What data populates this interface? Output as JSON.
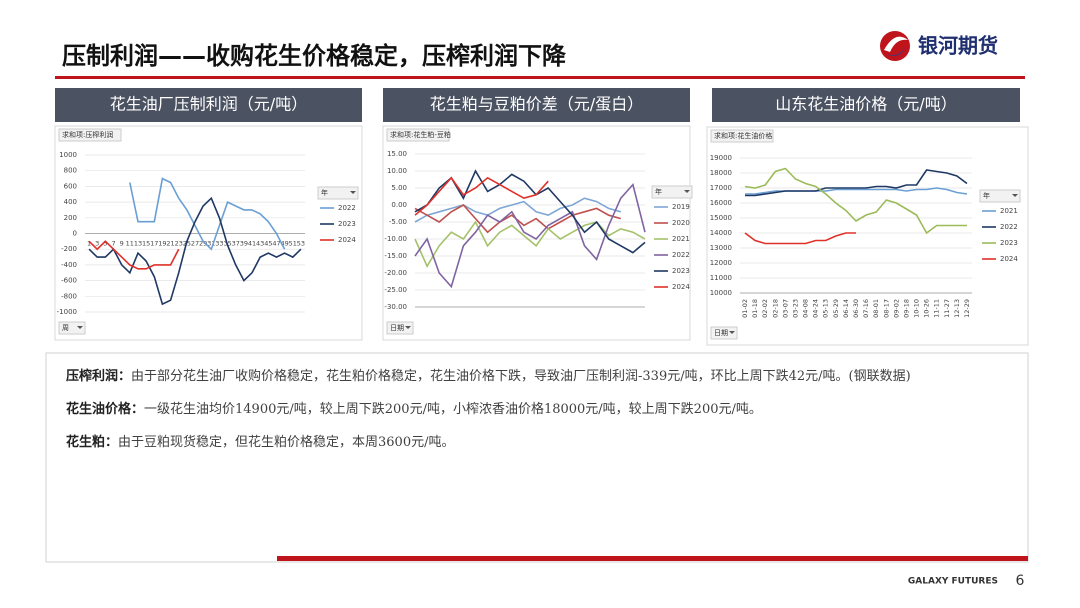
{
  "header": {
    "title": "压制利润——收购花生价格稳定，压榨利润下降",
    "logo": "银河期货"
  },
  "chart_data": [
    {
      "type": "line",
      "title": "花生油厂压制利润（元/吨）",
      "field_label": "求和项:压榨利润",
      "legend_title": "年",
      "x_filter": "周",
      "categories": [
        "1",
        "3",
        "5",
        "7",
        "9",
        "11",
        "13",
        "15",
        "17",
        "19",
        "21",
        "23",
        "25",
        "27",
        "29",
        "31",
        "33",
        "35",
        "37",
        "39",
        "41",
        "43",
        "45",
        "47",
        "49",
        "51",
        "53"
      ],
      "ylim": [
        -1000,
        1000
      ],
      "yticks": [
        1000,
        800,
        600,
        400,
        200,
        0,
        -200,
        -400,
        -600,
        -800,
        -1000
      ],
      "series": [
        {
          "name": "2022",
          "color": "#6a9fd4",
          "values": [
            null,
            null,
            null,
            null,
            null,
            650,
            150,
            150,
            150,
            700,
            650,
            450,
            300,
            100,
            -100,
            -200,
            100,
            400,
            350,
            300,
            300,
            250,
            150,
            0,
            -200,
            null,
            null
          ]
        },
        {
          "name": "2023",
          "color": "#1f3864",
          "values": [
            -200,
            -300,
            -300,
            -200,
            -400,
            -500,
            -250,
            -350,
            -550,
            -900,
            -850,
            -500,
            -100,
            150,
            350,
            450,
            200,
            -150,
            -400,
            -600,
            -500,
            -300,
            -250,
            -300,
            -250,
            -300,
            -200
          ]
        },
        {
          "name": "2024",
          "color": "#e0302a",
          "values": [
            -100,
            -200,
            -100,
            -200,
            -300,
            -400,
            -450,
            -450,
            -400,
            -400,
            -400,
            -200,
            null,
            null,
            null,
            null,
            null,
            null,
            null,
            null,
            null,
            null,
            null,
            null,
            null,
            null,
            null
          ]
        }
      ]
    },
    {
      "type": "line",
      "title": "花生粕与豆粕价差（元/蛋白）",
      "field_label": "求和项:花生粕-豆粕",
      "legend_title": "年",
      "x_filter": "日期",
      "categories": [
        null,
        null,
        null,
        null,
        null,
        null,
        null,
        null,
        null,
        null,
        null,
        null,
        null,
        null,
        null,
        null,
        null,
        null,
        null,
        null
      ],
      "ylim": [
        -30,
        15
      ],
      "yticks": [
        {
          "value": 15,
          "label": "15.00"
        },
        {
          "value": 10,
          "label": "10.00"
        },
        {
          "value": 5,
          "label": "5.00"
        },
        {
          "value": 0,
          "label": "0.00"
        },
        {
          "value": -5,
          "label": "-5.00"
        },
        {
          "value": -10,
          "label": "-10.00"
        },
        {
          "value": -15,
          "label": "-15.00"
        },
        {
          "value": -20,
          "label": "-20.00"
        },
        {
          "value": -25,
          "label": "-25.00"
        },
        {
          "value": -30,
          "label": "-30.00"
        }
      ],
      "series": [
        {
          "name": "2019",
          "color": "#7ea6d6",
          "values": [
            -5,
            -3,
            -2,
            -1,
            0,
            -2,
            -3,
            -1,
            0,
            1,
            -2,
            -3,
            -1,
            0,
            2,
            1,
            -1,
            -2,
            null,
            null
          ]
        },
        {
          "name": "2020",
          "color": "#c0504d",
          "values": [
            -1,
            -3,
            -5,
            -2,
            0,
            -4,
            -8,
            -5,
            -3,
            -6,
            -4,
            -7,
            -5,
            -3,
            -2,
            -1,
            -3,
            -4,
            null,
            null
          ]
        },
        {
          "name": "2021",
          "color": "#a5c26b",
          "values": [
            -10,
            -18,
            -12,
            -8,
            -10,
            -5,
            -12,
            -8,
            -6,
            -9,
            -12,
            -7,
            -10,
            -8,
            -6,
            -5,
            -9,
            -7,
            -8,
            -10
          ]
        },
        {
          "name": "2022",
          "color": "#8064a2",
          "values": [
            -15,
            -10,
            -20,
            -24,
            -12,
            -8,
            -3,
            -5,
            -2,
            -8,
            -10,
            -6,
            -4,
            -2,
            -12,
            -16,
            -6,
            2,
            6,
            -8
          ]
        },
        {
          "name": "2023",
          "color": "#1f3864",
          "values": [
            -2,
            0,
            5,
            8,
            2,
            10,
            4,
            6,
            9,
            7,
            3,
            5,
            1,
            -3,
            -8,
            -5,
            -10,
            -12,
            -14,
            -11
          ]
        },
        {
          "name": "2024",
          "color": "#e0302a",
          "values": [
            -3,
            0,
            4,
            8,
            3,
            5,
            8,
            6,
            4,
            2,
            3,
            7,
            null,
            null,
            null,
            null,
            null,
            null,
            null,
            null
          ]
        }
      ]
    },
    {
      "type": "line",
      "title": "山东花生油价格（元/吨）",
      "field_label": "求和项:花生油价格",
      "legend_title": "年",
      "x_filter": "日期",
      "categories": [
        "01-02",
        "01-18",
        "02-02",
        "02-18",
        "03-07",
        "03-23",
        "04-08",
        "04-24",
        "05-13",
        "05-29",
        "06-14",
        "06-30",
        "07-16",
        "08-01",
        "08-17",
        "09-02",
        "09-18",
        "10-10",
        "10-26",
        "11-11",
        "11-27",
        "12-13",
        "12-29"
      ],
      "ylim": [
        10000,
        19000
      ],
      "yticks": [
        19000,
        18000,
        17000,
        16000,
        15000,
        14000,
        13000,
        12000,
        11000,
        10000
      ],
      "series": [
        {
          "name": "2021",
          "color": "#6a9fd4",
          "values": [
            16600,
            16600,
            16700,
            16800,
            16800,
            16800,
            16800,
            16800,
            16800,
            16900,
            16900,
            16900,
            16900,
            16900,
            16900,
            16900,
            16800,
            16900,
            16900,
            17000,
            16900,
            16700,
            16600
          ]
        },
        {
          "name": "2022",
          "color": "#1f3864",
          "values": [
            16500,
            16500,
            16600,
            16700,
            16800,
            16800,
            16800,
            16800,
            17000,
            17000,
            17000,
            17000,
            17000,
            17100,
            17100,
            17000,
            17200,
            17200,
            18200,
            18100,
            18000,
            17800,
            17300
          ]
        },
        {
          "name": "2023",
          "color": "#9bbb59",
          "values": [
            17100,
            17000,
            17200,
            18100,
            18300,
            17600,
            17300,
            17100,
            16600,
            16000,
            15500,
            14800,
            15200,
            15400,
            16200,
            16000,
            15600,
            15200,
            14000,
            14500,
            14500,
            14500,
            14500
          ]
        },
        {
          "name": "2024",
          "color": "#e0302a",
          "values": [
            14000,
            13500,
            13300,
            13300,
            13300,
            13300,
            13300,
            13500,
            13500,
            13800,
            14000,
            14000,
            null,
            null,
            null,
            null,
            null,
            null,
            null,
            null,
            null,
            null,
            null
          ]
        }
      ]
    }
  ],
  "notes": [
    {
      "label": "压榨利润：",
      "text": "由于部分花生油厂收购价格稳定，花生粕价格稳定，花生油价格下跌，导致油厂压制利润-339元/吨，环比上周下跌42元/吨。(钢联数据)"
    },
    {
      "label": "花生油价格：",
      "text": "一级花生油均价14900元/吨，较上周下跌200元/吨，小榨浓香油价格18000元/吨，较上周下跌200元/吨。"
    },
    {
      "label": "花生粕：",
      "text": "由于豆粕现货稳定，但花生粕价格稳定，本周3600元/吨。"
    }
  ],
  "footer": {
    "brand": "GALAXY FUTURES",
    "page": "6"
  }
}
